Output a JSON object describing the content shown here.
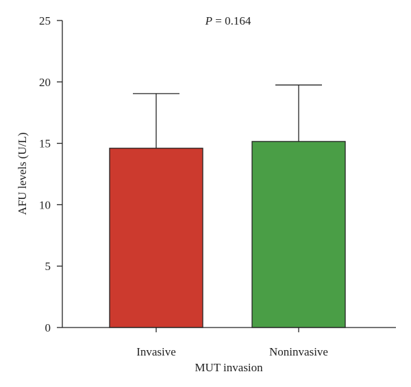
{
  "chart_data": {
    "type": "bar",
    "annotation": {
      "italic": "P",
      "text": " = 0.164"
    },
    "xlabel": "MUT invasion",
    "ylabel": "AFU levels (U/L)",
    "ylim": [
      0,
      25
    ],
    "yticks": [
      "0",
      "5",
      "10",
      "15",
      "20",
      "25"
    ],
    "categories": [
      "Invasive",
      "Noninvasive"
    ],
    "values": [
      14.6,
      15.15
    ],
    "error_upper": [
      19.05,
      19.75
    ],
    "colors": [
      "#cc3a2e",
      "#4a9e46"
    ],
    "grid": false,
    "legend": "none"
  }
}
